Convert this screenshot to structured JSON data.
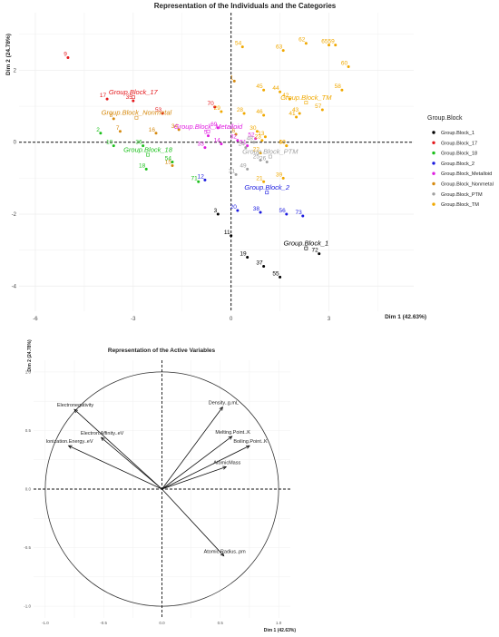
{
  "chart_data": [
    {
      "type": "scatter",
      "title": "Representation of the Individuals and the Categories",
      "xlabel": "Dim 1 (42.63%)",
      "ylabel": "Dim 2 (24.78%)",
      "xlim": [
        -6.5,
        5.6
      ],
      "ylim": [
        -4.7,
        3.6
      ],
      "x_ticks": [
        -6,
        -3,
        0,
        3
      ],
      "y_ticks": [
        -4,
        -2,
        0,
        2
      ],
      "legend": {
        "title": "Group.Block",
        "position": "right",
        "entries": [
          {
            "name": "Group.Block_1",
            "color": "#000000"
          },
          {
            "name": "Group.Block_17",
            "color": "#e4181c"
          },
          {
            "name": "Group.Block_18",
            "color": "#1bc01b"
          },
          {
            "name": "Group.Block_2",
            "color": "#1a1adf"
          },
          {
            "name": "Group.Block_Metalloid",
            "color": "#e01ee0"
          },
          {
            "name": "Group.Block_Nonmetal",
            "color": "#d68a10"
          },
          {
            "name": "Group.Block_PTM",
            "color": "#a0a0a0"
          },
          {
            "name": "Group.Block_TM",
            "color": "#f0a800"
          }
        ]
      },
      "centroids": [
        {
          "label": "Group.Block_17",
          "group": 1,
          "x": -3.0,
          "y": 1.25
        },
        {
          "label": "Group.Block_Nonmetal",
          "group": 5,
          "x": -2.9,
          "y": 0.68
        },
        {
          "label": "Group.Block_18",
          "group": 2,
          "x": -2.55,
          "y": -0.35
        },
        {
          "label": "Group.Block_Metalloid",
          "group": 4,
          "x": -0.7,
          "y": 0.3
        },
        {
          "label": "Group.Block_TM",
          "group": 7,
          "x": 2.3,
          "y": 1.1
        },
        {
          "label": "Group.Block_PTM",
          "group": 6,
          "x": 1.2,
          "y": -0.4
        },
        {
          "label": "Group.Block_2",
          "group": 3,
          "x": 1.1,
          "y": -1.4
        },
        {
          "label": "Group.Block_1",
          "group": 0,
          "x": 2.3,
          "y": -2.95
        }
      ],
      "points": [
        {
          "label": "9",
          "group": 1,
          "x": -5.0,
          "y": 2.35
        },
        {
          "label": "17",
          "group": 1,
          "x": -3.8,
          "y": 1.2
        },
        {
          "label": "35",
          "group": 1,
          "x": -3.0,
          "y": 1.15
        },
        {
          "label": "53",
          "group": 1,
          "x": -2.1,
          "y": 0.8
        },
        {
          "label": "70",
          "group": 1,
          "x": -0.5,
          "y": 0.98
        },
        {
          "label": "8",
          "group": 5,
          "x": -3.6,
          "y": 0.65
        },
        {
          "label": "7",
          "group": 5,
          "x": -3.4,
          "y": 0.3
        },
        {
          "label": "16",
          "group": 5,
          "x": -2.3,
          "y": 0.25
        },
        {
          "label": "34",
          "group": 5,
          "x": -1.6,
          "y": 0.35
        },
        {
          "label": "15",
          "group": 5,
          "x": -1.8,
          "y": -0.65
        },
        {
          "label": "6",
          "group": 5,
          "x": 0.15,
          "y": 0.22
        },
        {
          "label": "1",
          "group": 5,
          "x": 0.1,
          "y": 1.7
        },
        {
          "label": "2",
          "group": 2,
          "x": -4.0,
          "y": 0.25
        },
        {
          "label": "10",
          "group": 2,
          "x": -3.6,
          "y": -0.1
        },
        {
          "label": "36",
          "group": 2,
          "x": -2.7,
          "y": -0.1
        },
        {
          "label": "18",
          "group": 2,
          "x": -2.6,
          "y": -0.75
        },
        {
          "label": "54",
          "group": 2,
          "x": -1.8,
          "y": -0.55
        },
        {
          "label": "71",
          "group": 2,
          "x": -1.0,
          "y": -1.1
        },
        {
          "label": "12",
          "group": 3,
          "x": -0.8,
          "y": -1.05
        },
        {
          "label": "20",
          "group": 3,
          "x": 0.2,
          "y": -1.9
        },
        {
          "label": "38",
          "group": 3,
          "x": 0.9,
          "y": -1.95
        },
        {
          "label": "56",
          "group": 3,
          "x": 1.7,
          "y": -2.0
        },
        {
          "label": "73",
          "group": 3,
          "x": 2.2,
          "y": -2.05
        },
        {
          "label": "3",
          "group": 0,
          "x": -0.4,
          "y": -2.0
        },
        {
          "label": "11",
          "group": 0,
          "x": 0.0,
          "y": -2.6
        },
        {
          "label": "19",
          "group": 0,
          "x": 0.5,
          "y": -3.2
        },
        {
          "label": "37",
          "group": 0,
          "x": 1.0,
          "y": -3.45
        },
        {
          "label": "55",
          "group": 0,
          "x": 1.5,
          "y": -3.75
        },
        {
          "label": "72",
          "group": 0,
          "x": 2.7,
          "y": -3.1
        },
        {
          "label": "69",
          "group": 4,
          "x": -0.4,
          "y": 0.4
        },
        {
          "label": "5",
          "group": 4,
          "x": -0.7,
          "y": 0.18
        },
        {
          "label": "33",
          "group": 4,
          "x": -0.8,
          "y": -0.15
        },
        {
          "label": "51",
          "group": 4,
          "x": 0.5,
          "y": -0.1
        },
        {
          "label": "52",
          "group": 4,
          "x": 0.75,
          "y": 0.1
        },
        {
          "label": "32",
          "group": 4,
          "x": 0.2,
          "y": 0.05
        },
        {
          "label": "14",
          "group": 4,
          "x": -0.3,
          "y": -0.05
        },
        {
          "label": "29",
          "group": 7,
          "x": -0.3,
          "y": 0.85
        },
        {
          "label": "28",
          "group": 7,
          "x": 0.4,
          "y": 0.8
        },
        {
          "label": "30",
          "group": 7,
          "x": 0.8,
          "y": 0.3
        },
        {
          "label": "13",
          "group": 7,
          "x": 1.05,
          "y": 0.15
        },
        {
          "label": "23",
          "group": 7,
          "x": 0.95,
          "y": 0.05
        },
        {
          "label": "21",
          "group": 7,
          "x": 1.0,
          "y": -1.1
        },
        {
          "label": "39",
          "group": 7,
          "x": 1.6,
          "y": -1.0
        },
        {
          "label": "40",
          "group": 7,
          "x": 1.7,
          "y": -0.1
        },
        {
          "label": "22",
          "group": 7,
          "x": 0.9,
          "y": -0.3
        },
        {
          "label": "46",
          "group": 7,
          "x": 1.0,
          "y": 0.75
        },
        {
          "label": "41",
          "group": 7,
          "x": 2.0,
          "y": 0.7
        },
        {
          "label": "43",
          "group": 7,
          "x": 2.1,
          "y": 0.8
        },
        {
          "label": "57",
          "group": 7,
          "x": 2.8,
          "y": 0.9
        },
        {
          "label": "42",
          "group": 7,
          "x": 1.8,
          "y": 1.2
        },
        {
          "label": "44",
          "group": 7,
          "x": 1.5,
          "y": 1.4
        },
        {
          "label": "45",
          "group": 7,
          "x": 1.0,
          "y": 1.45
        },
        {
          "label": "58",
          "group": 7,
          "x": 3.4,
          "y": 1.45
        },
        {
          "label": "60",
          "group": 7,
          "x": 3.6,
          "y": 2.1
        },
        {
          "label": "54",
          "group": 7,
          "x": 0.35,
          "y": 2.65
        },
        {
          "label": "63",
          "group": 7,
          "x": 1.6,
          "y": 2.55
        },
        {
          "label": "62",
          "group": 7,
          "x": 2.3,
          "y": 2.75
        },
        {
          "label": "65",
          "group": 7,
          "x": 3.0,
          "y": 2.7
        },
        {
          "label": "59",
          "group": 7,
          "x": 3.2,
          "y": 2.7
        },
        {
          "label": "50",
          "group": 7,
          "x": 1.7,
          "y": -0.1
        },
        {
          "label": "26",
          "group": 6,
          "x": 1.1,
          "y": -0.55
        },
        {
          "label": "25",
          "group": 6,
          "x": 0.9,
          "y": -0.5
        },
        {
          "label": "49",
          "group": 6,
          "x": 0.5,
          "y": -0.75
        },
        {
          "label": "31",
          "group": 6,
          "x": 0.15,
          "y": -0.9
        },
        {
          "label": "48",
          "group": 6,
          "x": 0.7,
          "y": 0.0
        },
        {
          "label": "24",
          "group": 6,
          "x": 0.45,
          "y": -0.15
        }
      ]
    },
    {
      "type": "vector",
      "title": "Representation of the Active Variables",
      "xlabel": "Dim 1 (42.63%)",
      "ylabel": "Dim 2 (24.78%)",
      "xlim": [
        -1.1,
        1.1
      ],
      "ylim": [
        -1.1,
        1.1
      ],
      "ticks": [
        -1.0,
        -0.5,
        0.0,
        0.5,
        1.0
      ],
      "tick_labels": [
        "-1.0",
        "-0.5",
        "0.0",
        "0.5",
        "1.0"
      ],
      "variables": [
        {
          "name": "Electronegativity",
          "x": -0.75,
          "y": 0.68
        },
        {
          "name": "Electron.Affinity..eV",
          "x": -0.52,
          "y": 0.44
        },
        {
          "name": "Ionization.Energy..eV",
          "x": -0.8,
          "y": 0.37
        },
        {
          "name": "Density..g.mL",
          "x": 0.52,
          "y": 0.7
        },
        {
          "name": "Melting.Point..K",
          "x": 0.6,
          "y": 0.45
        },
        {
          "name": "Boiling.Point..K",
          "x": 0.75,
          "y": 0.37
        },
        {
          "name": "AtomicMass",
          "x": 0.55,
          "y": 0.19
        },
        {
          "name": "Atomic.Radius..pm",
          "x": 0.53,
          "y": -0.57
        }
      ]
    }
  ]
}
